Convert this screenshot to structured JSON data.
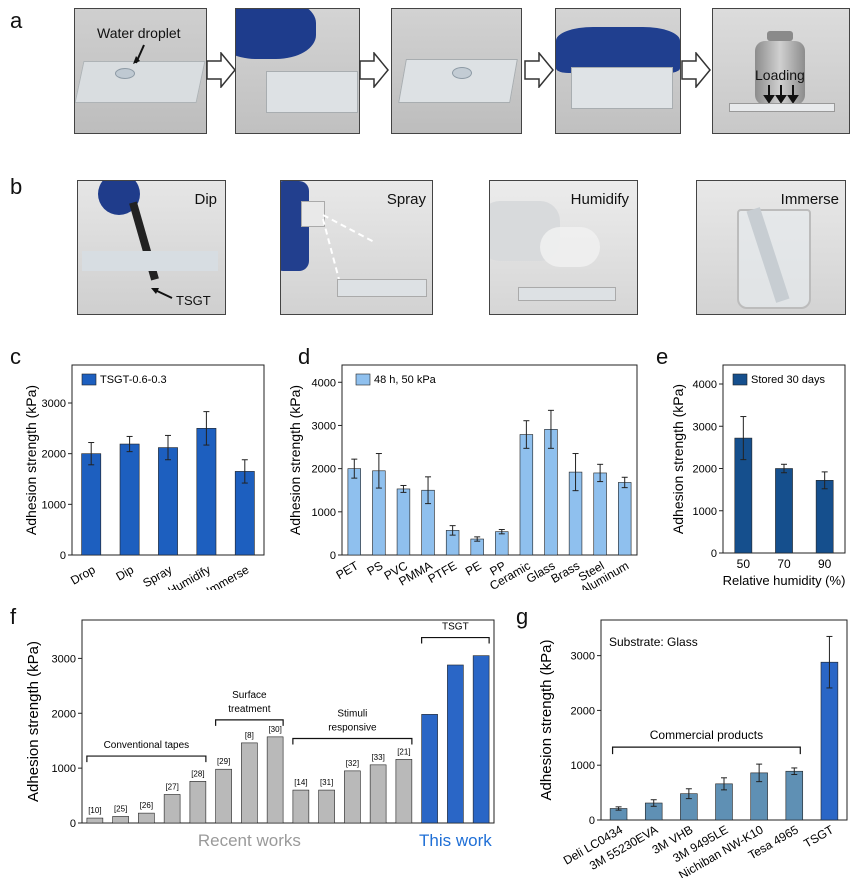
{
  "panels": {
    "a": "a",
    "b": "b",
    "c": "c",
    "d": "d",
    "e": "e",
    "f": "f",
    "g": "g"
  },
  "panel_a": {
    "water_droplet": "Water droplet",
    "loading": "Loading"
  },
  "panel_b": {
    "dip": "Dip",
    "spray": "Spray",
    "humidify": "Humidify",
    "immerse": "Immerse",
    "tsgt": "TSGT"
  },
  "colors": {
    "dark_blue": "#1d5fbf",
    "light_blue": "#8fc0ee",
    "navy": "#154f8d",
    "steel": "#5f90b4",
    "gray": "#b9b9b9",
    "tsgt_blue": "#2a66c6",
    "gray_text": "#9a9a9a",
    "blue_text": "#1f6fd6"
  },
  "chart_data": [
    {
      "id": "c",
      "type": "bar",
      "ylabel": "Adhesion strength (kPa)",
      "ylim": [
        0,
        3750
      ],
      "yticks": [
        0,
        1000,
        2000,
        3000
      ],
      "legend": "TSGT-0.6-0.3",
      "categories": [
        "Drop",
        "Dip",
        "Spray",
        "Humidify",
        "Immerse"
      ],
      "values": [
        2000,
        2190,
        2120,
        2500,
        1650
      ],
      "errors": [
        220,
        150,
        240,
        330,
        230
      ]
    },
    {
      "id": "d",
      "type": "bar",
      "ylabel": "Adhesion strength (kPa)",
      "ylim": [
        0,
        4400
      ],
      "yticks": [
        0,
        1000,
        2000,
        3000,
        4000
      ],
      "legend": "48 h, 50 kPa",
      "categories": [
        "PET",
        "PS",
        "PVC",
        "PMMA",
        "PTFE",
        "PE",
        "PP",
        "Ceramic",
        "Glass",
        "Brass",
        "Steel",
        "Aluminum"
      ],
      "values": [
        2000,
        1950,
        1530,
        1500,
        570,
        370,
        540,
        2790,
        2910,
        1920,
        1900,
        1680
      ],
      "errors": [
        220,
        400,
        80,
        310,
        110,
        50,
        50,
        320,
        440,
        430,
        200,
        120
      ]
    },
    {
      "id": "e",
      "type": "bar",
      "ylabel": "Adhesion strength (kPa)",
      "xlabel": "Relative humidity (%)",
      "ylim": [
        0,
        4450
      ],
      "yticks": [
        0,
        1000,
        2000,
        3000,
        4000
      ],
      "legend": "Stored 30 days",
      "categories": [
        "50",
        "70",
        "90"
      ],
      "values": [
        2720,
        2000,
        1720
      ],
      "errors": [
        510,
        100,
        200
      ]
    },
    {
      "id": "f",
      "type": "bar",
      "ylabel": "Adhesion strength (kPa)",
      "ylim": [
        0,
        3700
      ],
      "yticks": [
        0,
        1000,
        2000,
        3000
      ],
      "categories": [
        "[10]",
        "[25]",
        "[26]",
        "[27]",
        "[28]",
        "[29]",
        "[8]",
        "[30]",
        "[14]",
        "[31]",
        "[32]",
        "[33]",
        "[21]",
        "",
        "",
        ""
      ],
      "values": [
        90,
        120,
        180,
        520,
        760,
        980,
        1460,
        1570,
        600,
        600,
        950,
        1060,
        1160,
        1980,
        2880,
        3050
      ],
      "groups": {
        "conventional": "Conventional tapes",
        "surface": "Surface treatment",
        "surface_line1": "Surface",
        "surface_line2": "treatment",
        "stimuli_line1": "Stimuli",
        "stimuli_line2": "responsive",
        "tsgt": "TSGT"
      },
      "recent_works": "Recent works",
      "this_work": "This work"
    },
    {
      "id": "g",
      "type": "bar",
      "ylabel": "Adhesion strength (kPa)",
      "ylim": [
        0,
        3650
      ],
      "yticks": [
        0,
        1000,
        2000,
        3000
      ],
      "annotation": "Substrate: Glass",
      "group_label": "Commercial products",
      "categories": [
        "Deli LC0434",
        "3M 55230EVA",
        "3M VHB",
        "3M 9495LE",
        "Nichiban NW-K10",
        "Tesa 4965",
        "TSGT"
      ],
      "values": [
        210,
        310,
        480,
        660,
        860,
        890,
        2880
      ],
      "errors": [
        30,
        60,
        90,
        110,
        160,
        60,
        470
      ]
    }
  ]
}
